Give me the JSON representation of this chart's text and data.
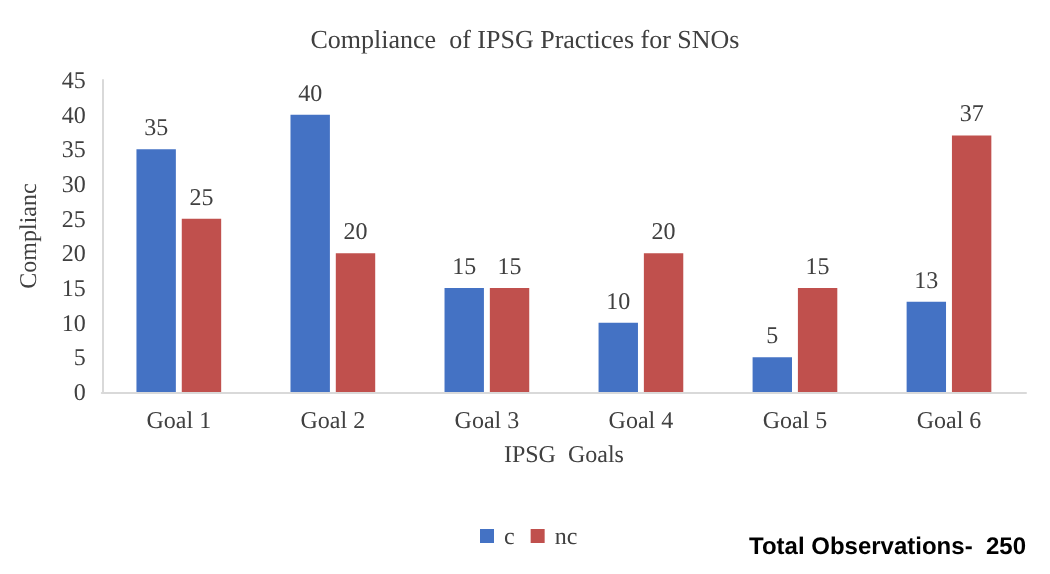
{
  "chart_data": {
    "type": "bar",
    "title": "Compliance  of IPSG Practices for SNOs",
    "xlabel": "IPSG  Goals",
    "ylabel": "Complianc",
    "categories": [
      "Goal 1",
      "Goal 2",
      "Goal 3",
      "Goal 4",
      "Goal 5",
      "Goal 6"
    ],
    "series": [
      {
        "name": "c",
        "color": "#4472c4",
        "values": [
          35,
          40,
          15,
          10,
          5,
          13
        ]
      },
      {
        "name": "nc",
        "color": "#c0504d",
        "values": [
          25,
          20,
          15,
          20,
          15,
          37
        ]
      }
    ],
    "ylim": [
      0,
      45
    ],
    "yticks": [
      0,
      5,
      10,
      15,
      20,
      25,
      30,
      35,
      40,
      45
    ],
    "grid": false,
    "legend": "bottom",
    "data_labels": true,
    "annotations": [
      "Total Observations-  250"
    ]
  }
}
